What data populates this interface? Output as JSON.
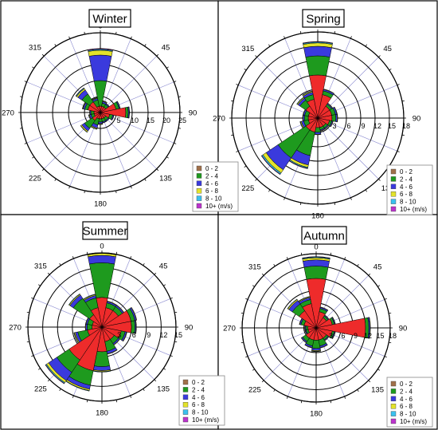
{
  "chart_data": [
    {
      "type": "polar-bar",
      "title": "Winter",
      "rmax": 25,
      "radial_ticks": [
        5,
        10,
        15,
        20,
        25
      ],
      "radial_tick_labels": [
        "5",
        "10",
        "15",
        "20",
        "25"
      ],
      "angle_ticks": [
        0,
        45,
        90,
        135,
        180,
        225,
        270,
        315
      ],
      "angle_tick_labels": [
        "0",
        "45",
        "90",
        "135",
        "180",
        "225",
        "270",
        "315"
      ],
      "categories": [
        0,
        22.5,
        45,
        67.5,
        90,
        112.5,
        135,
        157.5,
        180,
        202.5,
        225,
        247.5,
        270,
        292.5,
        315,
        337.5
      ],
      "series": [
        {
          "name": "0 - 2",
          "values": [
            2,
            2,
            2,
            5,
            8,
            3,
            2,
            2,
            2,
            2,
            3,
            2,
            2,
            4,
            4,
            2
          ]
        },
        {
          "name": "2 - 4",
          "values": [
            8,
            1,
            1,
            1,
            0.8,
            1,
            1,
            1,
            1,
            2,
            3,
            1,
            1,
            1,
            3,
            2
          ]
        },
        {
          "name": "4 - 6",
          "values": [
            8,
            0.5,
            0.3,
            0.3,
            0.3,
            0.3,
            0.3,
            0.3,
            0.5,
            1,
            1,
            0.5,
            0.3,
            0.5,
            1.5,
            0.5
          ]
        },
        {
          "name": "6 - 8",
          "values": [
            1.5,
            0.2,
            0.1,
            0.1,
            0.1,
            0.1,
            0.1,
            0.1,
            0.2,
            0.3,
            0.4,
            0.2,
            0.1,
            0.2,
            0.5,
            0.2
          ]
        },
        {
          "name": "8 - 10",
          "values": [
            0.3,
            0.1,
            0,
            0,
            0,
            0,
            0,
            0,
            0.1,
            0.1,
            0.1,
            0.1,
            0,
            0.1,
            0.2,
            0.1
          ]
        },
        {
          "name": "10+ (m/s)",
          "values": [
            0.2,
            0,
            0,
            0,
            0,
            0,
            0,
            0,
            0,
            0,
            0,
            0,
            0,
            0,
            0.1,
            0
          ]
        }
      ]
    },
    {
      "type": "polar-bar",
      "title": "Spring",
      "rmax": 18,
      "radial_ticks": [
        3,
        6,
        9,
        12,
        15,
        18
      ],
      "radial_tick_labels": [
        "3",
        "6",
        "9",
        "12",
        "15",
        "18"
      ],
      "angle_ticks": [
        0,
        45,
        90,
        135,
        180,
        225,
        270,
        315
      ],
      "angle_tick_labels": [
        "0",
        "45",
        "90",
        "135",
        "180",
        "225",
        "270",
        "315"
      ],
      "categories": [
        0,
        22.5,
        45,
        67.5,
        90,
        112.5,
        135,
        157.5,
        180,
        202.5,
        225,
        247.5,
        270,
        292.5,
        315,
        337.5
      ],
      "series": [
        {
          "name": "0 - 2",
          "values": [
            9,
            5,
            3,
            3,
            3,
            2.5,
            2,
            2,
            2,
            3,
            3,
            2,
            2,
            2,
            3,
            4
          ]
        },
        {
          "name": "2 - 4",
          "values": [
            4,
            0.8,
            0.5,
            0.8,
            0.8,
            0.5,
            0.5,
            0.5,
            1,
            5,
            7,
            1,
            0.8,
            0.8,
            1.5,
            1
          ]
        },
        {
          "name": "4 - 6",
          "values": [
            2,
            0.3,
            0.2,
            0.3,
            0.3,
            0.2,
            0.2,
            0.2,
            0.4,
            2,
            3,
            0.5,
            0.3,
            0.3,
            0.5,
            0.5
          ]
        },
        {
          "name": "6 - 8",
          "values": [
            0.7,
            0.1,
            0.1,
            0.1,
            0.1,
            0.1,
            0.1,
            0.1,
            0.1,
            0.5,
            0.8,
            0.2,
            0.1,
            0.1,
            0.2,
            0.2
          ]
        },
        {
          "name": "8 - 10",
          "values": [
            0.2,
            0,
            0,
            0,
            0,
            0,
            0,
            0,
            0,
            0.2,
            0.3,
            0.1,
            0,
            0,
            0.1,
            0.1
          ]
        },
        {
          "name": "10+ (m/s)",
          "values": [
            0.1,
            0,
            0,
            0,
            0,
            0,
            0,
            0,
            0,
            0.1,
            0.1,
            0,
            0,
            0,
            0,
            0
          ]
        }
      ]
    },
    {
      "type": "polar-bar",
      "title": "Summer",
      "rmax": 15,
      "radial_ticks": [
        3,
        6,
        9,
        12,
        15
      ],
      "radial_tick_labels": [
        "3",
        "6",
        "9",
        "12",
        "15"
      ],
      "angle_ticks": [
        0,
        45,
        90,
        135,
        180,
        225,
        270,
        315
      ],
      "angle_tick_labels": [
        "0",
        "45",
        "90",
        "135",
        "180",
        "225",
        "270",
        "315"
      ],
      "categories": [
        0,
        22.5,
        45,
        67.5,
        90,
        112.5,
        135,
        157.5,
        180,
        202.5,
        225,
        247.5,
        270,
        292.5,
        315,
        337.5
      ],
      "series": [
        {
          "name": "0 - 2",
          "values": [
            6,
            4,
            4,
            6,
            6,
            4,
            3,
            3,
            5,
            9,
            8,
            3,
            2,
            2,
            3,
            4
          ]
        },
        {
          "name": "2 - 4",
          "values": [
            7,
            1,
            1,
            0.8,
            0.7,
            0.8,
            1,
            2,
            3,
            3,
            3,
            2,
            1,
            1,
            4,
            2
          ]
        },
        {
          "name": "4 - 6",
          "values": [
            1.5,
            0.3,
            0.3,
            0.3,
            0.2,
            0.3,
            0.3,
            0.5,
            0.8,
            0.8,
            2,
            0.5,
            0.3,
            0.3,
            0.8,
            0.5
          ]
        },
        {
          "name": "6 - 8",
          "values": [
            0.4,
            0.1,
            0.1,
            0.1,
            0.1,
            0.1,
            0.1,
            0.1,
            0.2,
            0.3,
            0.5,
            0.2,
            0.1,
            0.1,
            0.2,
            0.2
          ]
        },
        {
          "name": "8 - 10",
          "values": [
            0.1,
            0,
            0,
            0,
            0,
            0,
            0,
            0,
            0.1,
            0.1,
            0.2,
            0.1,
            0,
            0,
            0.1,
            0.1
          ]
        },
        {
          "name": "10+ (m/s)",
          "values": [
            0,
            0,
            0,
            0,
            0,
            0,
            0,
            0,
            0,
            0,
            0.1,
            0,
            0,
            0,
            0,
            0
          ]
        }
      ]
    },
    {
      "type": "polar-bar",
      "title": "Autumn",
      "rmax": 18,
      "radial_ticks": [
        3,
        6,
        9,
        12,
        15,
        18
      ],
      "radial_tick_labels": [
        "3",
        "6",
        "9",
        "12",
        "15",
        "18"
      ],
      "angle_ticks": [
        0,
        45,
        90,
        135,
        180,
        225,
        270,
        315
      ],
      "angle_tick_labels": [
        "0",
        "45",
        "90",
        "135",
        "180",
        "225",
        "270",
        "315"
      ],
      "categories": [
        0,
        22.5,
        45,
        67.5,
        90,
        112.5,
        135,
        157.5,
        180,
        202.5,
        225,
        247.5,
        270,
        292.5,
        315,
        337.5
      ],
      "series": [
        {
          "name": "0 - 2",
          "values": [
            12,
            4,
            3,
            4,
            12,
            4,
            3,
            3,
            3,
            3,
            3,
            2,
            2,
            3,
            5,
            6
          ]
        },
        {
          "name": "2 - 4",
          "values": [
            3,
            0.8,
            0.5,
            0.5,
            0.8,
            0.5,
            0.5,
            1.5,
            2,
            1.5,
            1,
            0.5,
            0.5,
            0.8,
            2,
            1
          ]
        },
        {
          "name": "4 - 6",
          "values": [
            1.5,
            0.3,
            0.2,
            0.2,
            0.3,
            0.2,
            0.2,
            0.4,
            0.5,
            0.4,
            0.3,
            0.2,
            0.2,
            0.3,
            1,
            0.5
          ]
        },
        {
          "name": "6 - 8",
          "values": [
            0.5,
            0.1,
            0.1,
            0.1,
            0.1,
            0.1,
            0.1,
            0.1,
            0.2,
            0.1,
            0.1,
            0.1,
            0.1,
            0.1,
            0.3,
            0.2
          ]
        },
        {
          "name": "8 - 10",
          "values": [
            0.2,
            0,
            0,
            0,
            0,
            0,
            0,
            0,
            0.1,
            0,
            0,
            0,
            0,
            0,
            0.1,
            0.1
          ]
        },
        {
          "name": "10+ (m/s)",
          "values": [
            0.1,
            0,
            0,
            0,
            0,
            0,
            0,
            0,
            0,
            0,
            0,
            0,
            0,
            0,
            0,
            0
          ]
        }
      ]
    }
  ],
  "legend_entries": [
    "0 - 2",
    "2 - 4",
    "4 - 6",
    "6 - 8",
    "8 - 10",
    "10+ (m/s)"
  ],
  "colors": {
    "0 - 2": "#ee2b2b",
    "2 - 4": "#1e9a1e",
    "4 - 6": "#3a3add",
    "6 - 8": "#e3e32a",
    "8 - 10": "#3ac0ee",
    "10+ (m/s)": "#bb33cc",
    "legend_swatch_0-2": "#a0704a",
    "grid": "#000000",
    "spoke": "#8a8ad0"
  }
}
